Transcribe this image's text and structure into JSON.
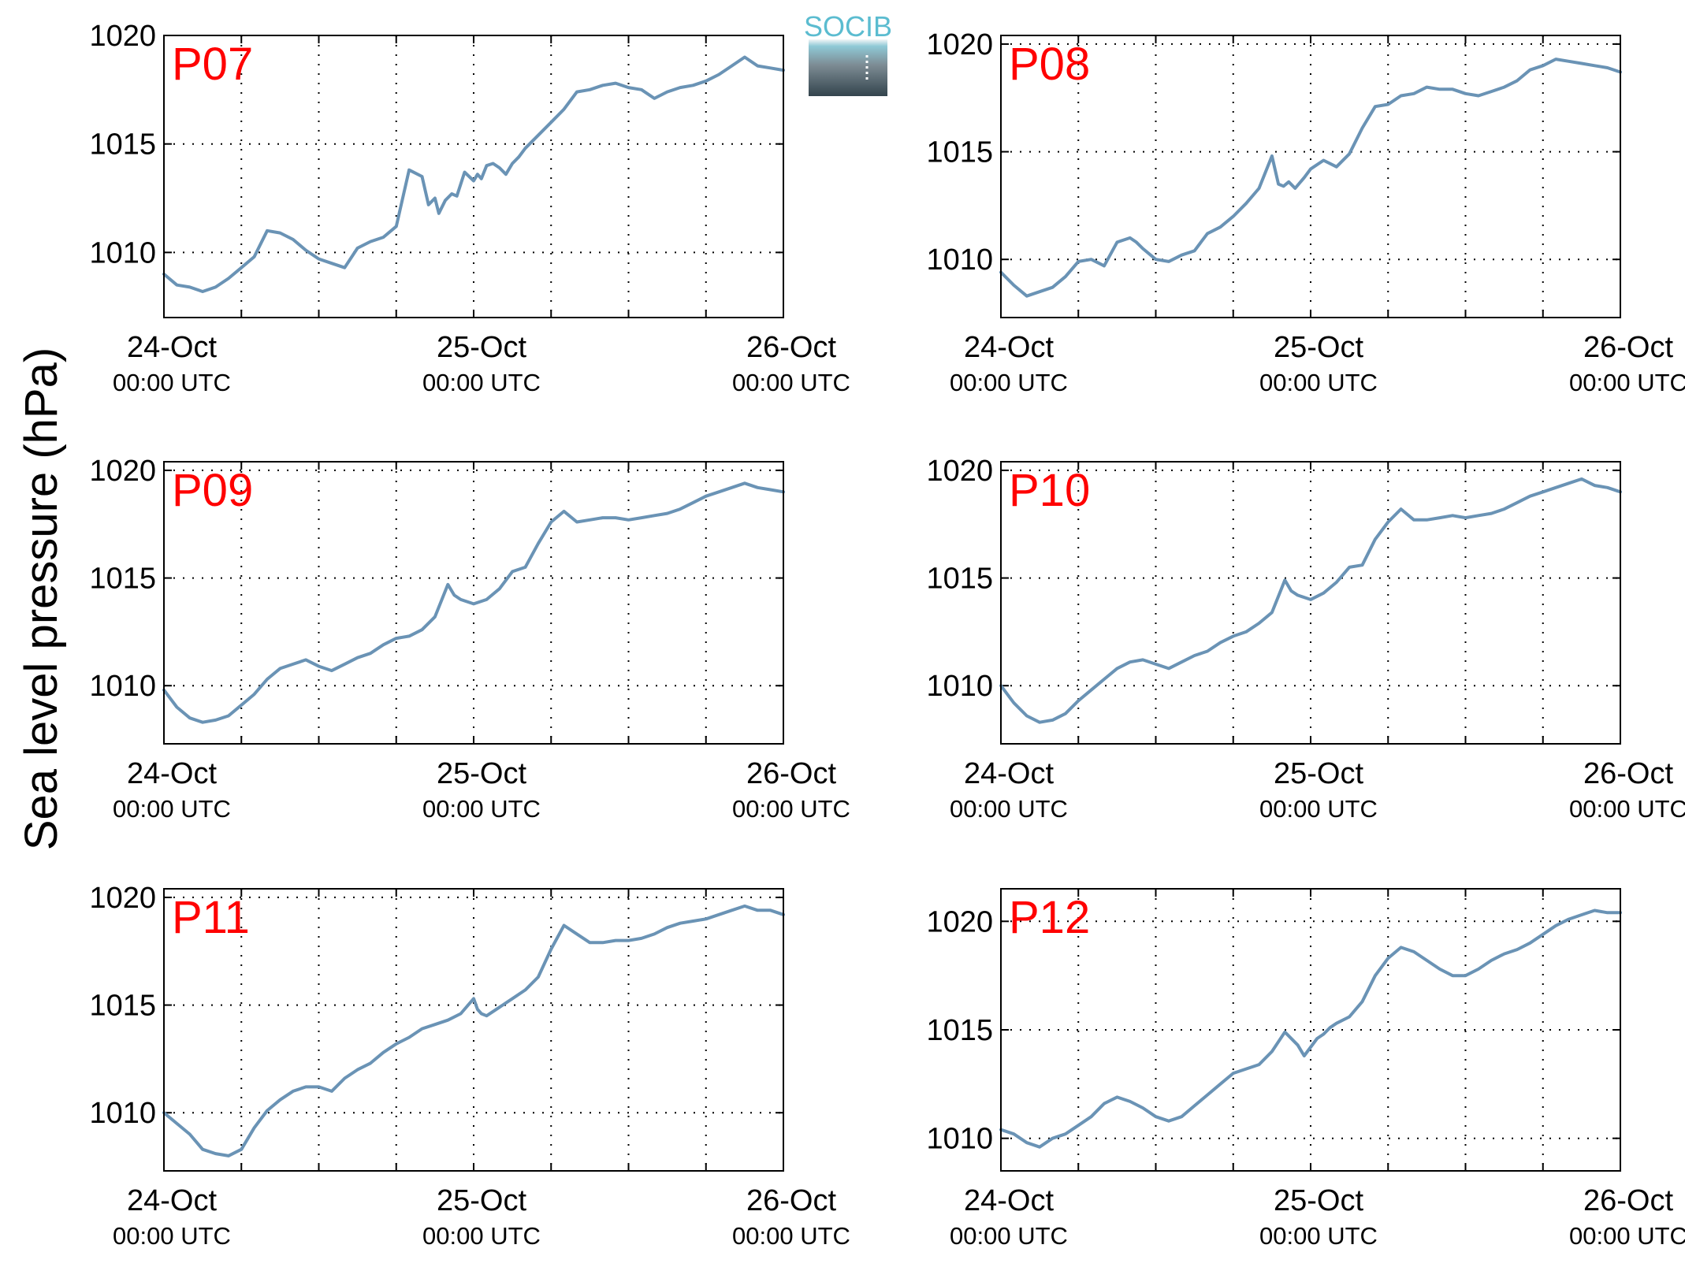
{
  "figure": {
    "ylabel": "Sea level pressure (hPa)",
    "logo_text": "SOCIB",
    "line_color": "#6a93b5",
    "label_color": "#ff0000",
    "logo_color": "#5bbcd0"
  },
  "chart_data": [
    {
      "type": "line",
      "name": "P07",
      "x_unit": "hours since 24-Oct 00:00 UTC",
      "xlim": [
        0,
        48
      ],
      "ylim": [
        1007,
        1020
      ],
      "yticks": [
        1010,
        1015,
        1020
      ],
      "xticks": [
        {
          "top": "24-Oct",
          "bottom": "00:00 UTC"
        },
        {
          "top": "25-Oct",
          "bottom": "00:00 UTC"
        },
        {
          "top": "26-Oct",
          "bottom": "00:00 UTC"
        }
      ],
      "grid": true,
      "x": [
        0,
        1,
        2,
        3,
        4,
        5,
        6,
        7,
        8,
        9,
        10,
        11,
        12,
        13,
        14,
        15,
        16,
        17,
        18,
        19,
        20,
        20.5,
        21,
        21.3,
        21.8,
        22.3,
        22.7,
        23.3,
        24,
        24.3,
        24.6,
        25,
        25.5,
        26,
        26.5,
        27,
        27.5,
        28,
        29,
        30,
        31,
        32,
        33,
        34,
        35,
        36,
        37,
        38,
        39,
        40,
        41,
        42,
        43,
        44,
        45,
        46,
        47,
        48
      ],
      "y": [
        1009.0,
        1008.5,
        1008.4,
        1008.2,
        1008.4,
        1008.8,
        1009.3,
        1009.8,
        1011.0,
        1010.9,
        1010.6,
        1010.1,
        1009.7,
        1009.5,
        1009.3,
        1010.2,
        1010.5,
        1010.7,
        1011.2,
        1013.8,
        1013.5,
        1012.2,
        1012.5,
        1011.8,
        1012.4,
        1012.7,
        1012.6,
        1013.7,
        1013.3,
        1013.6,
        1013.4,
        1014.0,
        1014.1,
        1013.9,
        1013.6,
        1014.1,
        1014.4,
        1014.8,
        1015.4,
        1016.0,
        1016.6,
        1017.4,
        1017.5,
        1017.7,
        1017.8,
        1017.6,
        1017.5,
        1017.1,
        1017.4,
        1017.6,
        1017.7,
        1017.9,
        1018.2,
        1018.6,
        1019.0,
        1018.6,
        1018.5,
        1018.4
      ],
      "label_number_format": "integer"
    },
    {
      "type": "line",
      "name": "P08",
      "xlim": [
        0,
        48
      ],
      "ylim": [
        1007.3,
        1020.4
      ],
      "yticks": [
        1010,
        1015,
        1020
      ],
      "xticks": [
        {
          "top": "24-Oct",
          "bottom": "00:00 UTC"
        },
        {
          "top": "25-Oct",
          "bottom": "00:00 UTC"
        },
        {
          "top": "26-Oct",
          "bottom": "00:00 UTC"
        }
      ],
      "grid": true,
      "x": [
        0,
        1,
        2,
        3,
        4,
        5,
        6,
        7,
        8,
        9,
        10,
        10.5,
        11,
        12,
        13,
        14,
        15,
        16,
        17,
        18,
        19,
        20,
        21,
        21.5,
        21.9,
        22.3,
        22.8,
        23.5,
        24,
        25,
        26,
        27,
        28,
        29,
        30,
        31,
        32,
        33,
        34,
        35,
        36,
        37,
        38,
        39,
        40,
        41,
        42,
        43,
        44,
        45,
        46,
        47,
        48
      ],
      "y": [
        1009.4,
        1008.8,
        1008.3,
        1008.5,
        1008.7,
        1009.2,
        1009.9,
        1010.0,
        1009.7,
        1010.8,
        1011.0,
        1010.8,
        1010.5,
        1010.0,
        1009.9,
        1010.2,
        1010.4,
        1011.2,
        1011.5,
        1012.0,
        1012.6,
        1013.3,
        1014.8,
        1013.5,
        1013.4,
        1013.6,
        1013.3,
        1013.8,
        1014.2,
        1014.6,
        1014.3,
        1014.9,
        1016.1,
        1017.1,
        1017.2,
        1017.6,
        1017.7,
        1018.0,
        1017.9,
        1017.9,
        1017.7,
        1017.6,
        1017.8,
        1018.0,
        1018.3,
        1018.8,
        1019.0,
        1019.3,
        1019.2,
        1019.1,
        1019.0,
        1018.9,
        1018.7
      ]
    },
    {
      "type": "line",
      "name": "P09",
      "xlim": [
        0,
        48
      ],
      "ylim": [
        1007.3,
        1020.4
      ],
      "yticks": [
        1010,
        1015,
        1020
      ],
      "xticks": [
        {
          "top": "24-Oct",
          "bottom": "00:00 UTC"
        },
        {
          "top": "25-Oct",
          "bottom": "00:00 UTC"
        },
        {
          "top": "26-Oct",
          "bottom": "00:00 UTC"
        }
      ],
      "grid": true,
      "x": [
        0,
        1,
        2,
        3,
        4,
        5,
        6,
        7,
        8,
        9,
        10,
        11,
        12,
        13,
        14,
        15,
        16,
        17,
        18,
        19,
        20,
        21,
        22,
        22.5,
        23,
        24,
        25,
        26,
        27,
        28,
        29,
        30,
        31,
        32,
        33,
        34,
        35,
        36,
        37,
        38,
        39,
        40,
        41,
        42,
        43,
        44,
        45,
        46,
        47,
        48
      ],
      "y": [
        1009.8,
        1009.0,
        1008.5,
        1008.3,
        1008.4,
        1008.6,
        1009.1,
        1009.6,
        1010.3,
        1010.8,
        1011.0,
        1011.2,
        1010.9,
        1010.7,
        1011.0,
        1011.3,
        1011.5,
        1011.9,
        1012.2,
        1012.3,
        1012.6,
        1013.2,
        1014.7,
        1014.2,
        1014.0,
        1013.8,
        1014.0,
        1014.5,
        1015.3,
        1015.5,
        1016.6,
        1017.6,
        1018.1,
        1017.6,
        1017.7,
        1017.8,
        1017.8,
        1017.7,
        1017.8,
        1017.9,
        1018.0,
        1018.2,
        1018.5,
        1018.8,
        1019.0,
        1019.2,
        1019.4,
        1019.2,
        1019.1,
        1019.0
      ]
    },
    {
      "type": "line",
      "name": "P10",
      "xlim": [
        0,
        48
      ],
      "ylim": [
        1007.3,
        1020.4
      ],
      "yticks": [
        1010,
        1015,
        1020
      ],
      "xticks": [
        {
          "top": "24-Oct",
          "bottom": "00:00 UTC"
        },
        {
          "top": "25-Oct",
          "bottom": "00:00 UTC"
        },
        {
          "top": "26-Oct",
          "bottom": "00:00 UTC"
        }
      ],
      "grid": true,
      "x": [
        0,
        1,
        2,
        3,
        4,
        5,
        6,
        7,
        8,
        9,
        10,
        11,
        12,
        13,
        14,
        15,
        16,
        17,
        18,
        19,
        20,
        21,
        22,
        22.5,
        23,
        24,
        25,
        26,
        27,
        28,
        29,
        30,
        31,
        32,
        33,
        34,
        35,
        36,
        37,
        38,
        39,
        40,
        41,
        42,
        43,
        44,
        45,
        46,
        47,
        48
      ],
      "y": [
        1010.0,
        1009.2,
        1008.6,
        1008.3,
        1008.4,
        1008.7,
        1009.3,
        1009.8,
        1010.3,
        1010.8,
        1011.1,
        1011.2,
        1011.0,
        1010.8,
        1011.1,
        1011.4,
        1011.6,
        1012.0,
        1012.3,
        1012.5,
        1012.9,
        1013.4,
        1014.9,
        1014.4,
        1014.2,
        1014.0,
        1014.3,
        1014.8,
        1015.5,
        1015.6,
        1016.8,
        1017.6,
        1018.2,
        1017.7,
        1017.7,
        1017.8,
        1017.9,
        1017.8,
        1017.9,
        1018.0,
        1018.2,
        1018.5,
        1018.8,
        1019.0,
        1019.2,
        1019.4,
        1019.6,
        1019.3,
        1019.2,
        1019.0
      ]
    },
    {
      "type": "line",
      "name": "P11",
      "xlim": [
        0,
        48
      ],
      "ylim": [
        1007.3,
        1020.4
      ],
      "yticks": [
        1010,
        1015,
        1020
      ],
      "xticks": [
        {
          "top": "24-Oct",
          "bottom": "00:00 UTC"
        },
        {
          "top": "25-Oct",
          "bottom": "00:00 UTC"
        },
        {
          "top": "26-Oct",
          "bottom": "00:00 UTC"
        }
      ],
      "grid": true,
      "x": [
        0,
        1,
        2,
        3,
        4,
        5,
        6,
        7,
        8,
        9,
        10,
        11,
        12,
        13,
        14,
        15,
        16,
        17,
        18,
        19,
        20,
        21,
        22,
        23,
        24,
        24.3,
        24.6,
        25,
        26,
        27,
        28,
        29,
        30,
        31,
        32,
        33,
        34,
        35,
        36,
        37,
        38,
        39,
        40,
        41,
        42,
        43,
        44,
        45,
        46,
        47,
        48
      ],
      "y": [
        1010.0,
        1009.5,
        1009.0,
        1008.3,
        1008.1,
        1008.0,
        1008.3,
        1009.3,
        1010.1,
        1010.6,
        1011.0,
        1011.2,
        1011.2,
        1011.0,
        1011.6,
        1012.0,
        1012.3,
        1012.8,
        1013.2,
        1013.5,
        1013.9,
        1014.1,
        1014.3,
        1014.6,
        1015.3,
        1014.8,
        1014.6,
        1014.5,
        1014.9,
        1015.3,
        1015.7,
        1016.3,
        1017.6,
        1018.7,
        1018.3,
        1017.9,
        1017.9,
        1018.0,
        1018.0,
        1018.1,
        1018.3,
        1018.6,
        1018.8,
        1018.9,
        1019.0,
        1019.2,
        1019.4,
        1019.6,
        1019.4,
        1019.4,
        1019.2
      ]
    },
    {
      "type": "line",
      "name": "P12",
      "xlim": [
        0,
        48
      ],
      "ylim": [
        1008.5,
        1021.5
      ],
      "yticks": [
        1010,
        1015,
        1020
      ],
      "xticks": [
        {
          "top": "24-Oct",
          "bottom": "00:00 UTC"
        },
        {
          "top": "25-Oct",
          "bottom": "00:00 UTC"
        },
        {
          "top": "26-Oct",
          "bottom": "00:00 UTC"
        }
      ],
      "grid": true,
      "x": [
        0,
        1,
        2,
        3,
        4,
        5,
        6,
        7,
        8,
        9,
        10,
        11,
        12,
        13,
        14,
        15,
        16,
        17,
        18,
        19,
        20,
        21,
        22,
        23,
        23.5,
        24,
        24.5,
        25,
        25.5,
        26,
        27,
        28,
        29,
        30,
        31,
        32,
        33,
        34,
        35,
        36,
        37,
        38,
        39,
        40,
        41,
        42,
        43,
        44,
        45,
        46,
        47,
        48
      ],
      "y": [
        1010.4,
        1010.2,
        1009.8,
        1009.6,
        1010.0,
        1010.2,
        1010.6,
        1011.0,
        1011.6,
        1011.9,
        1011.7,
        1011.4,
        1011.0,
        1010.8,
        1011.0,
        1011.5,
        1012.0,
        1012.5,
        1013.0,
        1013.2,
        1013.4,
        1014.0,
        1014.9,
        1014.3,
        1013.8,
        1014.2,
        1014.6,
        1014.8,
        1015.1,
        1015.3,
        1015.6,
        1016.3,
        1017.5,
        1018.3,
        1018.8,
        1018.6,
        1018.2,
        1017.8,
        1017.5,
        1017.5,
        1017.8,
        1018.2,
        1018.5,
        1018.7,
        1019.0,
        1019.4,
        1019.8,
        1020.1,
        1020.3,
        1020.5,
        1020.4,
        1020.4
      ]
    }
  ]
}
